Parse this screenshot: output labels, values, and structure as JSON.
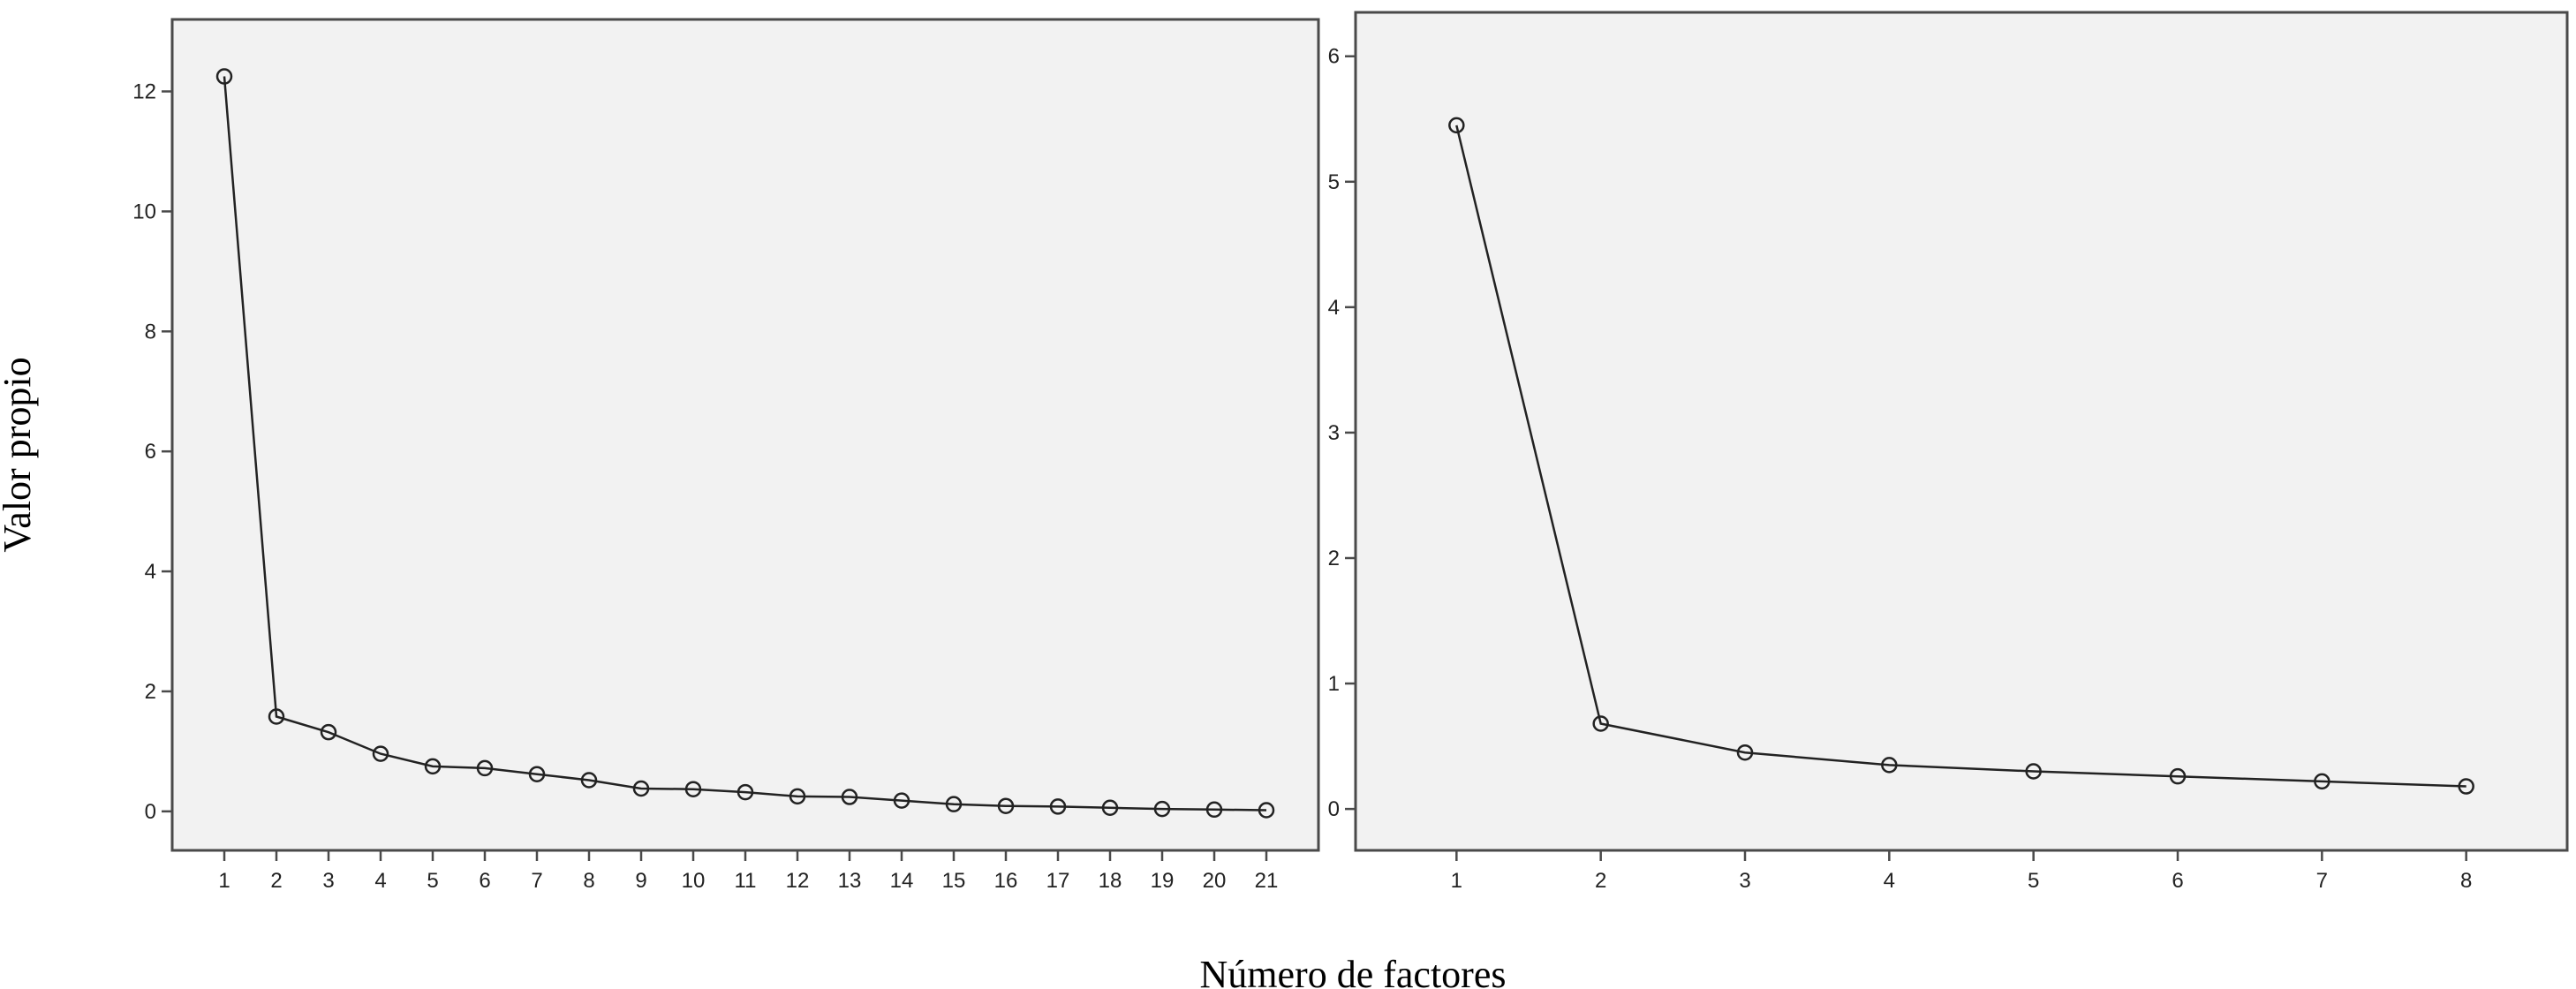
{
  "shared_labels": {
    "ylabel": "Valor propio",
    "xlabel": "Número de factores"
  },
  "chart_data": [
    {
      "type": "line",
      "x": [
        1,
        2,
        3,
        4,
        5,
        6,
        7,
        8,
        9,
        10,
        11,
        12,
        13,
        14,
        15,
        16,
        17,
        18,
        19,
        20,
        21
      ],
      "series": [
        {
          "values": [
            12.25,
            1.58,
            1.32,
            0.96,
            0.75,
            0.72,
            0.62,
            0.52,
            0.38,
            0.37,
            0.32,
            0.25,
            0.24,
            0.18,
            0.12,
            0.09,
            0.08,
            0.06,
            0.04,
            0.03,
            0.02
          ]
        }
      ],
      "xlim": [
        0,
        22
      ],
      "ylim": [
        -0.65,
        13.2
      ],
      "yticks": [
        0,
        2,
        4,
        6,
        8,
        10,
        12
      ],
      "markers": "open-circle",
      "grid": false
    },
    {
      "type": "line",
      "x": [
        1,
        2,
        3,
        4,
        5,
        6,
        7,
        8
      ],
      "series": [
        {
          "values": [
            5.45,
            0.68,
            0.45,
            0.35,
            0.3,
            0.26,
            0.22,
            0.18
          ]
        }
      ],
      "xlim": [
        0.3,
        8.7
      ],
      "ylim": [
        -0.33,
        6.35
      ],
      "yticks": [
        0,
        1,
        2,
        3,
        4,
        5,
        6
      ],
      "markers": "open-circle",
      "grid": false
    }
  ]
}
